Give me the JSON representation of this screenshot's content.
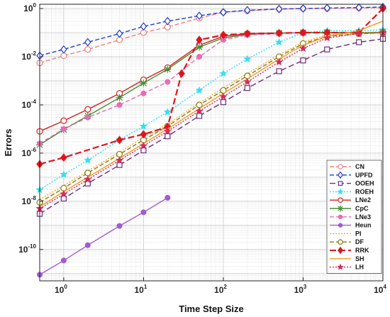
{
  "chart_data": {
    "type": "line",
    "xscale": "log",
    "yscale": "log",
    "xlabel": "Time Step Size",
    "ylabel": "Errors",
    "xlim": [
      0.5,
      10000
    ],
    "ylim": [
      5e-12,
      1.5
    ],
    "grid": true,
    "legend_position": "bottom-right",
    "x_ticks": [
      {
        "value": 1,
        "base": "10",
        "exp": "0"
      },
      {
        "value": 10,
        "base": "10",
        "exp": "1"
      },
      {
        "value": 100,
        "base": "10",
        "exp": "2"
      },
      {
        "value": 1000,
        "base": "10",
        "exp": "3"
      },
      {
        "value": 10000,
        "base": "10",
        "exp": "4"
      }
    ],
    "y_ticks": [
      {
        "value": 1,
        "base": "10",
        "exp": "0"
      },
      {
        "value": 0.01,
        "base": "10",
        "exp": "-2"
      },
      {
        "value": 0.0001,
        "base": "10",
        "exp": "-4"
      },
      {
        "value": 1e-06,
        "base": "10",
        "exp": "-6"
      },
      {
        "value": 1e-08,
        "base": "10",
        "exp": "-8"
      },
      {
        "value": 1e-10,
        "base": "10",
        "exp": "-10"
      }
    ],
    "series": [
      {
        "name": "CN",
        "color": "#f08080",
        "dash": "6,3",
        "marker": "circle-open",
        "x": [
          0.5,
          1,
          2,
          5,
          10,
          20,
          50,
          100,
          200,
          500,
          1000,
          2000,
          5000,
          10000
        ],
        "y": [
          0.0055,
          0.011,
          0.02,
          0.05,
          0.1,
          0.17,
          0.4,
          0.7,
          0.8,
          0.95,
          1.0,
          1.0,
          1.05,
          1.1
        ]
      },
      {
        "name": "UPFD",
        "color": "#1f3fd0",
        "dash": "6,3",
        "marker": "diamond-open",
        "x": [
          0.5,
          1,
          2,
          5,
          10,
          20,
          50,
          100,
          200,
          500,
          1000,
          2000,
          5000,
          10000
        ],
        "y": [
          0.011,
          0.02,
          0.04,
          0.09,
          0.18,
          0.3,
          0.5,
          0.7,
          0.85,
          0.95,
          1.0,
          1.05,
          1.1,
          1.15
        ]
      },
      {
        "name": "OOEH",
        "color": "#6b2d7b",
        "dash": "8,4",
        "marker": "square-open",
        "x": [
          0.5,
          1,
          2,
          5,
          10,
          20,
          50,
          100,
          200,
          500,
          1000,
          2000,
          5000,
          10000
        ],
        "y": [
          3e-09,
          1.3e-08,
          5.5e-08,
          3.2e-07,
          1.3e-06,
          5e-06,
          3.5e-05,
          0.00013,
          0.0005,
          0.0025,
          0.007,
          0.02,
          0.04,
          0.055
        ]
      },
      {
        "name": "ROEH",
        "color": "#33e0f0",
        "dash": "2,2",
        "marker": "star",
        "x": [
          0.5,
          1,
          2,
          5,
          10,
          20,
          50,
          100,
          200,
          500,
          1000,
          2000,
          5000,
          10000
        ],
        "y": [
          3e-08,
          1.3e-07,
          5e-07,
          3.5e-06,
          1.3e-05,
          5e-05,
          0.0004,
          0.002,
          0.008,
          0.04,
          0.1,
          0.12,
          0.12,
          0.13
        ]
      },
      {
        "name": "LNe2",
        "color": "#d42020",
        "dash": "",
        "marker": "circle-open",
        "x": [
          0.5,
          1,
          2,
          5,
          10,
          20,
          50,
          100,
          200,
          500,
          1000,
          2000,
          5000,
          10000
        ],
        "y": [
          8e-06,
          2.2e-05,
          6.5e-05,
          0.0003,
          0.0011,
          0.0035,
          0.03,
          0.07,
          0.09,
          0.095,
          0.1,
          0.1,
          0.1,
          0.1
        ]
      },
      {
        "name": "CpC",
        "color": "#3f8f2f",
        "dash": "",
        "marker": "x-star",
        "x": [
          0.5,
          1,
          2,
          5,
          10,
          20,
          50,
          100,
          200,
          500,
          1000,
          2000,
          5000,
          10000
        ],
        "y": [
          2.2e-06,
          9.5e-06,
          3.5e-05,
          0.0002,
          0.0008,
          0.003,
          0.025,
          0.06,
          0.085,
          0.095,
          0.1,
          0.1,
          0.1,
          0.1
        ]
      },
      {
        "name": "LNe3",
        "color": "#e66bb8",
        "dash": "6,3",
        "marker": "circle-filled",
        "x": [
          0.5,
          1,
          2,
          5,
          10,
          20,
          50,
          100,
          200,
          500,
          1000
        ],
        "y": [
          2.5e-06,
          1e-05,
          3e-05,
          0.0001,
          0.0003,
          0.0009,
          0.01,
          0.05,
          0.08,
          0.09,
          0.1
        ]
      },
      {
        "name": "Heun",
        "color": "#a05cd0",
        "dash": "",
        "marker": "circle-filled",
        "x": [
          0.5,
          1,
          2,
          5,
          10,
          20
        ],
        "y": [
          9e-12,
          3.5e-11,
          1.5e-10,
          9.5e-10,
          3.5e-09,
          1.4e-08
        ]
      },
      {
        "name": "PI",
        "color": "#f0b020",
        "dash": "2,2",
        "marker": "none",
        "x": [
          0.5,
          1,
          2,
          5,
          10,
          20,
          50,
          100,
          200,
          500,
          1000,
          2000,
          5000,
          10000
        ],
        "y": [
          1.2e-08,
          4.5e-08,
          1.8e-07,
          1.1e-06,
          4.5e-06,
          1.6e-05,
          0.00012,
          0.0005,
          0.002,
          0.012,
          0.04,
          0.08,
          0.1,
          0.11
        ]
      },
      {
        "name": "DF",
        "color": "#8a7a10",
        "dash": "6,3",
        "marker": "circle-open",
        "x": [
          0.5,
          1,
          2,
          5,
          10,
          20,
          50,
          100,
          200,
          500,
          1000,
          2000,
          5000,
          10000
        ],
        "y": [
          9e-09,
          3.5e-08,
          1.5e-07,
          9e-07,
          3.5e-06,
          1.3e-05,
          0.0001,
          0.0004,
          0.0016,
          0.01,
          0.035,
          0.07,
          0.09,
          0.1
        ]
      },
      {
        "name": "RRK",
        "color": "#e0141e",
        "dash": "9,4",
        "marker": "diamond-filled",
        "x": [
          0.5,
          1,
          5,
          10,
          20,
          30,
          50,
          100,
          200,
          500,
          1000,
          2000,
          5000,
          10000
        ],
        "y": [
          3.5e-07,
          6.5e-07,
          3.5e-06,
          6e-06,
          1.2e-05,
          0.002,
          0.05,
          0.08,
          0.09,
          0.095,
          0.1,
          0.1,
          0.1,
          1.0
        ]
      },
      {
        "name": "SH",
        "color": "#f09a28",
        "dash": "",
        "marker": "none",
        "x": [
          0.5,
          1,
          2,
          5,
          10,
          20,
          50,
          100,
          200,
          500,
          1000,
          2000,
          5000,
          10000
        ],
        "y": [
          6e-09,
          2.5e-08,
          1e-07,
          6e-07,
          2.5e-06,
          1e-05,
          7e-05,
          0.0003,
          0.0012,
          0.008,
          0.03,
          0.07,
          0.12,
          0.3
        ]
      },
      {
        "name": "LH",
        "color": "#d42a5a",
        "dash": "2,2",
        "marker": "star",
        "x": [
          0.5,
          1,
          2,
          5,
          10,
          20,
          50,
          100,
          200,
          500,
          1000,
          2000,
          5000,
          10000
        ],
        "y": [
          5e-09,
          2e-08,
          8e-08,
          5e-07,
          2e-06,
          8e-06,
          5.5e-05,
          0.00022,
          0.0009,
          0.006,
          0.022,
          0.06,
          0.09,
          0.1
        ]
      }
    ]
  }
}
